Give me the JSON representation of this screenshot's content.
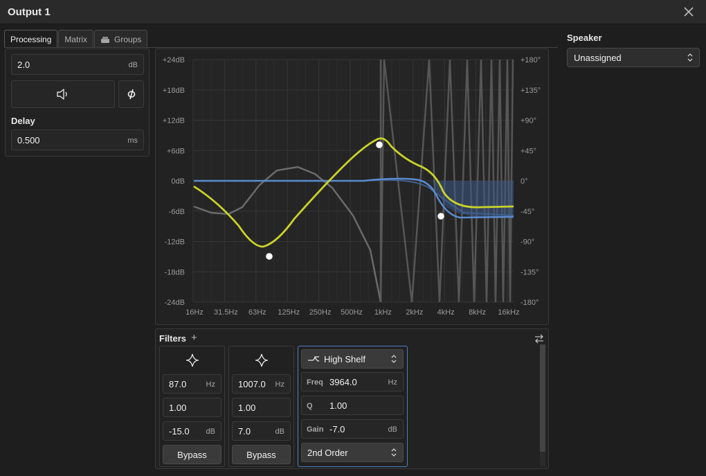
{
  "window": {
    "title": "Output 1"
  },
  "tabs": [
    {
      "label": "Processing",
      "active": true
    },
    {
      "label": "Matrix",
      "active": false
    },
    {
      "label": "Groups",
      "active": false,
      "icon": "stack-icon"
    }
  ],
  "processing": {
    "gain": {
      "value": "2.0",
      "unit": "dB"
    },
    "mute_icon": "speaker-icon",
    "polarity_icon": "phase-icon",
    "delay_label": "Delay",
    "delay": {
      "value": "0.500",
      "unit": "ms"
    }
  },
  "graph": {
    "db_labels": [
      "+24dB",
      "+18dB",
      "+12dB",
      "+6dB",
      "0dB",
      "-6dB",
      "-12dB",
      "-18dB",
      "-24dB"
    ],
    "phase_labels": [
      "+180°",
      "+135°",
      "+90°",
      "+45°",
      "0°",
      "-45°",
      "-90°",
      "-135°",
      "-180°"
    ],
    "freq_labels": [
      "16Hz",
      "31.5Hz",
      "63Hz",
      "125Hz",
      "250Hz",
      "500Hz",
      "1kHz",
      "2kHz",
      "4kHz",
      "8kHz",
      "16kHz"
    ],
    "colors": {
      "response": "#c9d32a",
      "phase": "#6b6b6b",
      "output": "#5b8bd0",
      "grid": "#363636"
    }
  },
  "filters": {
    "title": "Filters",
    "add_icon": "plus-icon",
    "swap_icon": "swap-icon",
    "items": [
      {
        "type_icon": "peak-filter-icon",
        "freq": "87.0",
        "freq_unit": "Hz",
        "q": "1.00",
        "gain": "-15.0",
        "gain_unit": "dB",
        "bypass": "Bypass"
      },
      {
        "type_icon": "peak-filter-icon",
        "freq": "1007.0",
        "freq_unit": "Hz",
        "q": "1.00",
        "gain": "7.0",
        "gain_unit": "dB",
        "bypass": "Bypass"
      }
    ],
    "selected": {
      "type": "High Shelf",
      "type_icon": "high-shelf-icon",
      "freq_label": "Freq",
      "freq": "3964.0",
      "freq_unit": "Hz",
      "q_label": "Q",
      "q": "1.00",
      "gain_label": "Gain",
      "gain": "-7.0",
      "gain_unit": "dB",
      "order": "2nd Order"
    }
  },
  "speaker": {
    "label": "Speaker",
    "value": "Unassigned"
  }
}
